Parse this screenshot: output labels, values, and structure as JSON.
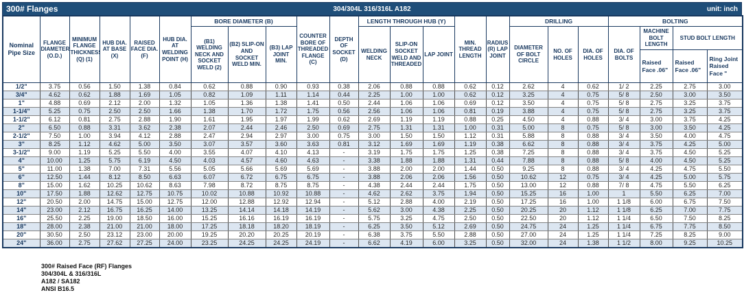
{
  "title_bar": {
    "title": "300# Flanges",
    "material": "304/304L 316/316L A182",
    "unit": "unit: inch"
  },
  "header": {
    "groups": {
      "bore_diameter": "BORE DIAMETER (B)",
      "length_through_hub": "LENGTH THROUGH HUB (Y)",
      "drilling": "DRILLING",
      "bolting": "BOLTING",
      "machine_bolt_length": "MACHINE BOLT LENGTH",
      "stud_bolt_length": "STUD BOLT LENGTH"
    },
    "cols": {
      "nominal": "Nominal Pipe Size",
      "od": "FLANGE DIAMETER (O.D.)",
      "thickness": "MINIMUM FLANGE THICKNESS (Q) (1)",
      "hub_base": "HUB DIA. AT BASE (X)",
      "raised_face": "RAISED FACE DIA. (F)",
      "hub_weld": "HUB DIA. AT WELDING POINT (H)",
      "b1": "(B1) WELDING NECK AND SOCKET WELD (2)",
      "b2": "(B2) SLIP-ON AND SOCKET WELD MIN.",
      "b3": "(B3) LAP JOINT MIN.",
      "counter_bore": "COUNTER BORE OF THREADED FLANGE (C)",
      "socket_depth": "DEPTH OF SOCKET (D)",
      "welding_neck": "WELDING NECK",
      "slip_on": "SLIP-ON SOCKET WELD AND THREADED",
      "lap_joint": "LAP JOINT",
      "min_thread": "MIN. THREAD LENGTH",
      "radius": "RADIUS (R) LAP JOINT",
      "bolt_circle": "DIAMETER OF BOLT CIRCLE",
      "num_holes": "NO. OF HOLES",
      "hole_dia": "DIA. OF HOLES",
      "bolt_dia": "DIA. OF BOLTS",
      "machine_rf": "Raised Face .06\"",
      "stud_rf": "Raised Face .06\"",
      "ring_joint": "Ring Joint Raised Face \""
    }
  },
  "table": {
    "rows": [
      [
        "1/2\"",
        "3.75",
        "0.56",
        "1.50",
        "1.38",
        "0.84",
        "0.62",
        "0.88",
        "0.90",
        "0.93",
        "0.38",
        "2.06",
        "0.88",
        "0.88",
        "0.62",
        "0.12",
        "2.62",
        "4",
        "0.62",
        "1/ 2",
        "2.25",
        "2.75",
        "3.00"
      ],
      [
        "3/4\"",
        "4.62",
        "0.62",
        "1.88",
        "1.69",
        "1.05",
        "0.82",
        "1.09",
        "1.11",
        "1.14",
        "0.44",
        "2.25",
        "1.00",
        "1.00",
        "0.62",
        "0.12",
        "3.25",
        "4",
        "0.75",
        "5/ 8",
        "2.50",
        "3.00",
        "3.50"
      ],
      [
        "1\"",
        "4.88",
        "0.69",
        "2.12",
        "2.00",
        "1.32",
        "1.05",
        "1.36",
        "1.38",
        "1.41",
        "0.50",
        "2.44",
        "1.06",
        "1.06",
        "0.69",
        "0.12",
        "3.50",
        "4",
        "0.75",
        "5/ 8",
        "2.75",
        "3.25",
        "3.75"
      ],
      [
        "1-1/4\"",
        "5.25",
        "0.75",
        "2.50",
        "2.50",
        "1.66",
        "1.38",
        "1.70",
        "1.72",
        "1.75",
        "0.56",
        "2.56",
        "1.06",
        "1.06",
        "0.81",
        "0.19",
        "3.88",
        "4",
        "0.75",
        "5/ 8",
        "2.75",
        "3.25",
        "3.75"
      ],
      [
        "1-1/2\"",
        "6.12",
        "0.81",
        "2.75",
        "2.88",
        "1.90",
        "1.61",
        "1.95",
        "1.97",
        "1.99",
        "0.62",
        "2.69",
        "1.19",
        "1.19",
        "0.88",
        "0.25",
        "4.50",
        "4",
        "0.88",
        "3/ 4",
        "3.00",
        "3.75",
        "4.25"
      ],
      [
        "2\"",
        "6.50",
        "0.88",
        "3.31",
        "3.62",
        "2.38",
        "2.07",
        "2.44",
        "2.46",
        "2.50",
        "0.69",
        "2.75",
        "1.31",
        "1.31",
        "1.00",
        "0.31",
        "5.00",
        "8",
        "0.75",
        "5/ 8",
        "3.00",
        "3.50",
        "4.25"
      ],
      [
        "2-1/2\"",
        "7.50",
        "1.00",
        "3.94",
        "4.12",
        "2.88",
        "2.47",
        "2.94",
        "2.97",
        "3.00",
        "0.75",
        "3.00",
        "1.50",
        "1.50",
        "1.12",
        "0.31",
        "5.88",
        "8",
        "0.88",
        "3/ 4",
        "3.50",
        "4.00",
        "4.75"
      ],
      [
        "3\"",
        "8.25",
        "1.12",
        "4.62",
        "5.00",
        "3.50",
        "3.07",
        "3.57",
        "3.60",
        "3.63",
        "0.81",
        "3.12",
        "1.69",
        "1.69",
        "1.19",
        "0.38",
        "6.62",
        "8",
        "0.88",
        "3/ 4",
        "3.75",
        "4.25",
        "5.00"
      ],
      [
        "3-1/2\"",
        "9.00",
        "1.19",
        "5.25",
        "5.50",
        "4.00",
        "3.55",
        "4.07",
        "4.10",
        "4.13",
        "-",
        "3.19",
        "1.75",
        "1.75",
        "1.25",
        "0.38",
        "7.25",
        "8",
        "0.88",
        "3/ 4",
        "3.75",
        "4.50",
        "5.25"
      ],
      [
        "4\"",
        "10.00",
        "1.25",
        "5.75",
        "6.19",
        "4.50",
        "4.03",
        "4.57",
        "4.60",
        "4.63",
        "-",
        "3.38",
        "1.88",
        "1.88",
        "1.31",
        "0.44",
        "7.88",
        "8",
        "0.88",
        "5/ 8",
        "4.00",
        "4.50",
        "5.25"
      ],
      [
        "5\"",
        "11.00",
        "1.38",
        "7.00",
        "7.31",
        "5.56",
        "5.05",
        "5.66",
        "5.69",
        "5.69",
        "-",
        "3.88",
        "2.00",
        "2.00",
        "1.44",
        "0.50",
        "9.25",
        "8",
        "0.88",
        "3/ 4",
        "4.25",
        "4.75",
        "5.50"
      ],
      [
        "6\"",
        "12.50",
        "1.44",
        "8.12",
        "8.50",
        "6.63",
        "6.07",
        "6.72",
        "6.75",
        "6.75",
        "-",
        "3.88",
        "2.06",
        "2.06",
        "1.56",
        "0.50",
        "10.62",
        "12",
        "0.75",
        "3/ 4",
        "4.25",
        "5.00",
        "5.75"
      ],
      [
        "8\"",
        "15.00",
        "1.62",
        "10.25",
        "10.62",
        "8.63",
        "7.98",
        "8.72",
        "8.75",
        "8.75",
        "-",
        "4.38",
        "2.44",
        "2.44",
        "1.75",
        "0.50",
        "13.00",
        "12",
        "0.88",
        "7/ 8",
        "4.75",
        "5.50",
        "6.25"
      ],
      [
        "10\"",
        "17.50",
        "1.88",
        "12.62",
        "12.75",
        "10.75",
        "10.02",
        "10.88",
        "10.92",
        "10.88",
        "-",
        "4.62",
        "2.62",
        "3.75",
        "1.94",
        "0.50",
        "15.25",
        "16",
        "1.00",
        "1",
        "5.50",
        "6.25",
        "7.00"
      ],
      [
        "12\"",
        "20.50",
        "2.00",
        "14.75",
        "15.00",
        "12.75",
        "12.00",
        "12.88",
        "12.92",
        "12.94",
        "-",
        "5.12",
        "2.88",
        "4.00",
        "2.19",
        "0.50",
        "17.25",
        "16",
        "1.00",
        "1 1/8",
        "6.00",
        "6.75",
        "7.50"
      ],
      [
        "14\"",
        "23.00",
        "2.12",
        "16.75",
        "16.25",
        "14.00",
        "13.25",
        "14.14",
        "14.18",
        "14.19",
        "-",
        "5.62",
        "3.00",
        "4.38",
        "2.25",
        "0.50",
        "20.25",
        "20",
        "1.12",
        "1 1/8",
        "6.25",
        "7.00",
        "7.75"
      ],
      [
        "16\"",
        "25.50",
        "2.25",
        "19.00",
        "18.50",
        "16.00",
        "15.25",
        "16.16",
        "16.19",
        "16.19",
        "-",
        "5.75",
        "3.25",
        "4.75",
        "2.50",
        "0.50",
        "22.50",
        "20",
        "1.12",
        "1 1/4",
        "6.50",
        "7.50",
        "8.25"
      ],
      [
        "18\"",
        "28.00",
        "2.38",
        "21.00",
        "21.00",
        "18.00",
        "17.25",
        "18.18",
        "18.20",
        "18.19",
        "-",
        "6.25",
        "3.50",
        "5.12",
        "2.69",
        "0.50",
        "24.75",
        "24",
        "1.25",
        "1 1/4",
        "6.75",
        "7.75",
        "8.50"
      ],
      [
        "20\"",
        "30.50",
        "2.50",
        "23.12",
        "23.00",
        "20.00",
        "19.25",
        "20.20",
        "20.25",
        "20.19",
        "-",
        "6.38",
        "3.75",
        "5.50",
        "2.88",
        "0.50",
        "27.00",
        "24",
        "1.25",
        "1 1/4",
        "7.25",
        "8.25",
        "9.00"
      ],
      [
        "24\"",
        "36.00",
        "2.75",
        "27.62",
        "27.25",
        "24.00",
        "23.25",
        "24.25",
        "24.25",
        "24.19",
        "-",
        "6.62",
        "4.19",
        "6.00",
        "3.25",
        "0.50",
        "32.00",
        "24",
        "1.38",
        "1 1/2",
        "8.00",
        "9.25",
        "10.25"
      ]
    ]
  },
  "footer": {
    "lines": [
      "300# Raised Face (RF) Flanges",
      "304/304L & 316/316L",
      "A182 / SA182",
      "ANSI B16.5"
    ]
  },
  "colors": {
    "title_bar_bg": "#1F4E79",
    "header_text": "#17375E",
    "alt_row_bg": "#DCE6F1"
  }
}
